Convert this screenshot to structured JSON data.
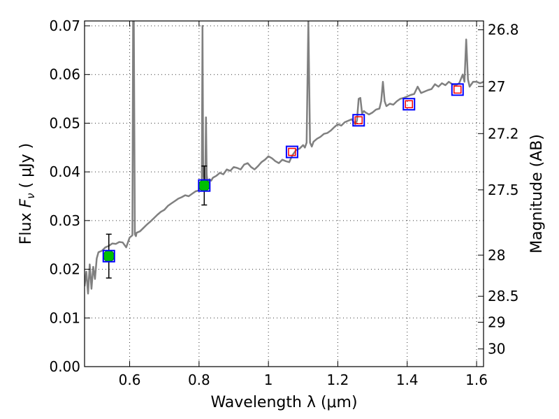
{
  "chart_data": {
    "type": "line",
    "title": "",
    "xlabel": "Wavelength  λ (μm)",
    "ylabel": "Flux  F_ν  ( μJy )",
    "ylabel_parts": {
      "prefix": "Flux  ",
      "symbol": "F",
      "sub": "ν",
      "suffix": "  ( μJy )"
    },
    "y2label": "Magnitude (AB)",
    "xlim": [
      0.47,
      1.62
    ],
    "ylim": [
      0.0,
      0.071
    ],
    "grid": true,
    "x_ticks": [
      0.6,
      0.8,
      1.0,
      1.2,
      1.4,
      1.6
    ],
    "x_tick_labels": [
      "0.6",
      "0.8",
      "1",
      "1.2",
      "1.4",
      "1.6"
    ],
    "y_ticks": [
      0.0,
      0.01,
      0.02,
      0.03,
      0.04,
      0.05,
      0.06,
      0.07
    ],
    "y_tick_labels": [
      "0.00",
      "0.01",
      "0.02",
      "0.03",
      "0.04",
      "0.05",
      "0.06",
      "0.07"
    ],
    "y2_ticks": [
      26.8,
      27.0,
      27.2,
      27.5,
      28.0,
      28.5,
      29.0,
      30.0
    ],
    "y2_tick_labels": [
      "26.8",
      "27",
      "27.2",
      "27.5",
      "28",
      "28.5",
      "29",
      "30"
    ],
    "series": [
      {
        "style": "gray-line",
        "color": "#808080",
        "x": [
          0.47,
          0.475,
          0.48,
          0.485,
          0.49,
          0.495,
          0.5,
          0.505,
          0.51,
          0.52,
          0.53,
          0.54,
          0.55,
          0.56,
          0.57,
          0.58,
          0.59,
          0.6,
          0.605,
          0.608,
          0.61,
          0.612,
          0.615,
          0.618,
          0.62,
          0.63,
          0.64,
          0.65,
          0.66,
          0.67,
          0.68,
          0.69,
          0.7,
          0.71,
          0.72,
          0.73,
          0.74,
          0.75,
          0.76,
          0.77,
          0.78,
          0.79,
          0.8,
          0.802,
          0.804,
          0.806,
          0.808,
          0.81,
          0.812,
          0.814,
          0.816,
          0.818,
          0.82,
          0.822,
          0.824,
          0.826,
          0.828,
          0.83,
          0.835,
          0.84,
          0.85,
          0.86,
          0.87,
          0.88,
          0.89,
          0.9,
          0.91,
          0.92,
          0.93,
          0.94,
          0.95,
          0.96,
          0.97,
          0.98,
          0.99,
          1.0,
          1.01,
          1.02,
          1.03,
          1.04,
          1.05,
          1.06,
          1.065,
          1.07,
          1.075,
          1.08,
          1.09,
          1.1,
          1.105,
          1.11,
          1.115,
          1.12,
          1.125,
          1.13,
          1.14,
          1.15,
          1.16,
          1.17,
          1.18,
          1.19,
          1.2,
          1.21,
          1.22,
          1.23,
          1.24,
          1.25,
          1.255,
          1.26,
          1.265,
          1.27,
          1.275,
          1.28,
          1.29,
          1.3,
          1.31,
          1.32,
          1.325,
          1.33,
          1.335,
          1.34,
          1.35,
          1.36,
          1.37,
          1.38,
          1.39,
          1.4,
          1.41,
          1.42,
          1.43,
          1.44,
          1.45,
          1.46,
          1.47,
          1.48,
          1.49,
          1.5,
          1.51,
          1.52,
          1.53,
          1.54,
          1.55,
          1.56,
          1.565,
          1.57,
          1.575,
          1.58,
          1.59,
          1.6,
          1.61,
          1.62
        ],
        "values": [
          0.0165,
          0.0195,
          0.015,
          0.021,
          0.016,
          0.0205,
          0.018,
          0.0222,
          0.0235,
          0.0238,
          0.0245,
          0.0248,
          0.0253,
          0.0252,
          0.0256,
          0.0255,
          0.0245,
          0.0265,
          0.0268,
          0.027,
          0.071,
          0.071,
          0.0272,
          0.0268,
          0.0275,
          0.0278,
          0.0285,
          0.0292,
          0.0298,
          0.0305,
          0.0312,
          0.0318,
          0.0322,
          0.033,
          0.0335,
          0.034,
          0.0345,
          0.0348,
          0.0352,
          0.035,
          0.0355,
          0.036,
          0.0362,
          0.0365,
          0.0368,
          0.0372,
          0.0375,
          0.07,
          0.0398,
          0.0385,
          0.038,
          0.0385,
          0.0512,
          0.0395,
          0.038,
          0.0383,
          0.038,
          0.0385,
          0.0382,
          0.0388,
          0.0392,
          0.0398,
          0.0395,
          0.0405,
          0.0402,
          0.041,
          0.0408,
          0.0405,
          0.0415,
          0.0418,
          0.041,
          0.0405,
          0.0412,
          0.042,
          0.0425,
          0.0432,
          0.0428,
          0.0422,
          0.0418,
          0.0425,
          0.0422,
          0.042,
          0.0428,
          0.0435,
          0.044,
          0.0445,
          0.0448,
          0.0455,
          0.045,
          0.046,
          0.071,
          0.046,
          0.0452,
          0.0462,
          0.0468,
          0.0472,
          0.0478,
          0.048,
          0.0485,
          0.0492,
          0.0498,
          0.0495,
          0.0502,
          0.0505,
          0.0508,
          0.0498,
          0.0505,
          0.055,
          0.0552,
          0.052,
          0.0525,
          0.0522,
          0.0518,
          0.0522,
          0.0528,
          0.053,
          0.0545,
          0.0585,
          0.0545,
          0.0535,
          0.054,
          0.0538,
          0.0545,
          0.055,
          0.0552,
          0.0555,
          0.0558,
          0.056,
          0.0575,
          0.0562,
          0.0565,
          0.0568,
          0.057,
          0.058,
          0.0575,
          0.0582,
          0.0578,
          0.0585,
          0.058,
          0.0578,
          0.0582,
          0.06,
          0.0585,
          0.0672,
          0.059,
          0.0575,
          0.0585,
          0.0585,
          0.0582,
          0.0585
        ]
      },
      {
        "style": "green-points",
        "color": "#00c000",
        "x": [
          0.54,
          0.815
        ],
        "values": [
          0.0227,
          0.0372
        ],
        "errors": [
          0.0045,
          0.004
        ]
      },
      {
        "style": "blue-squares",
        "color": "#0000ff",
        "x": [
          0.54,
          0.815,
          1.068,
          1.26,
          1.405,
          1.545
        ],
        "values": [
          0.0227,
          0.0372,
          0.0441,
          0.0506,
          0.0539,
          0.0569
        ]
      },
      {
        "style": "red-squares",
        "color": "#ff0000",
        "x": [
          1.068,
          1.26,
          1.405,
          1.545
        ],
        "values": [
          0.0441,
          0.0506,
          0.0539,
          0.0569
        ]
      }
    ]
  }
}
